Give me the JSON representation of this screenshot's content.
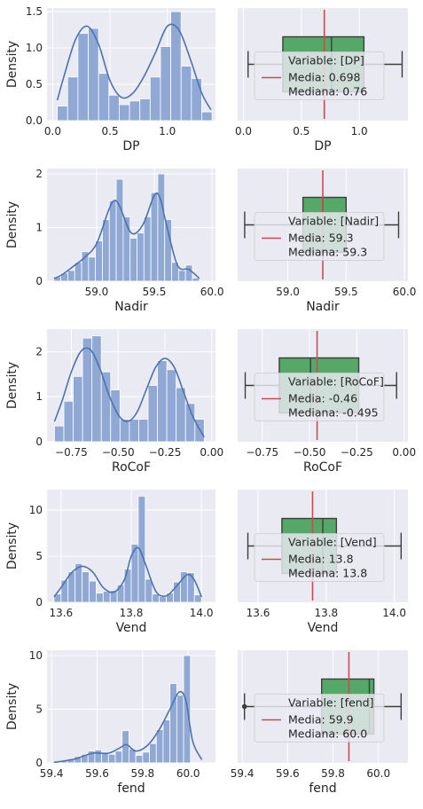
{
  "colors": {
    "panel_bg": "#eaeaf2",
    "grid": "#ffffff",
    "hist_fill": "#8fa8d4",
    "hist_edge": "#ffffff",
    "kde": "#4c72b0",
    "box_fill": "#55a868",
    "box_edge": "#3d3d3d",
    "mean_line": "#c44e52",
    "text": "#262626"
  },
  "chart_data": [
    {
      "type": "bar",
      "variable": "DP",
      "xlabel": "DP",
      "ylabel": "Density",
      "xlim": [
        -0.05,
        1.42
      ],
      "ylim": [
        0,
        1.55
      ],
      "xticks": [
        0.0,
        0.5,
        1.0
      ],
      "xtick_labels": [
        "0.0",
        "0.5",
        "1.0"
      ],
      "yticks": [
        0.0,
        0.5,
        1.0,
        1.5
      ],
      "ytick_labels": [
        "0.0",
        "0.5",
        "1.0",
        "1.5"
      ],
      "bin_edges": [
        0.04,
        0.13,
        0.22,
        0.31,
        0.4,
        0.49,
        0.58,
        0.67,
        0.76,
        0.85,
        0.94,
        1.03,
        1.12,
        1.21,
        1.3,
        1.39
      ],
      "bin_values": [
        0.2,
        0.6,
        1.2,
        1.27,
        0.65,
        0.35,
        0.22,
        0.27,
        0.3,
        0.6,
        1.02,
        1.5,
        0.75,
        0.58,
        0.12
      ],
      "kde_x": [
        0.04,
        0.1,
        0.2,
        0.3,
        0.4,
        0.5,
        0.6,
        0.7,
        0.8,
        0.9,
        1.0,
        1.1,
        1.2,
        1.3,
        1.38
      ],
      "kde_y": [
        0.28,
        0.62,
        1.12,
        1.3,
        1.05,
        0.55,
        0.32,
        0.38,
        0.62,
        0.95,
        1.3,
        1.25,
        0.85,
        0.38,
        0.15
      ],
      "box": {
        "whisker_low": 0.04,
        "q1": 0.34,
        "median": 0.76,
        "q3": 1.04,
        "whisker_high": 1.37,
        "mean": 0.698,
        "xlim": [
          -0.05,
          1.42
        ],
        "xticks": [
          0.0,
          0.5,
          1.0
        ],
        "xtick_labels": [
          "0.0",
          "0.5",
          "1.0"
        ]
      },
      "legend": {
        "title": "Variable: [DP]",
        "entries": [
          "Media: 0.698",
          "Mediana: 0.76"
        ]
      }
    },
    {
      "type": "bar",
      "variable": "Nadir",
      "xlabel": "Nadir",
      "ylabel": "Density",
      "xlim": [
        58.57,
        60.03
      ],
      "ylim": [
        0,
        2.1
      ],
      "xticks": [
        59.0,
        59.5,
        60.0
      ],
      "xtick_labels": [
        "59.0",
        "59.5",
        "60.0"
      ],
      "yticks": [
        0,
        1,
        2
      ],
      "ytick_labels": [
        "0",
        "1",
        "2"
      ],
      "bin_edges": [
        58.63,
        58.69,
        58.75,
        58.81,
        58.87,
        58.93,
        58.99,
        59.05,
        59.11,
        59.17,
        59.23,
        59.29,
        59.35,
        59.41,
        59.47,
        59.53,
        59.59,
        59.65,
        59.71,
        59.77,
        59.83,
        59.89
      ],
      "bin_values": [
        0.08,
        0.15,
        0.2,
        0.35,
        0.55,
        0.45,
        0.75,
        1.15,
        1.5,
        1.9,
        1.2,
        0.8,
        0.9,
        1.2,
        1.65,
        2.0,
        1.15,
        0.35,
        0.2,
        0.3,
        0.06
      ],
      "kde_x": [
        58.63,
        58.7,
        58.8,
        58.9,
        59.0,
        59.1,
        59.15,
        59.2,
        59.3,
        59.4,
        59.5,
        59.55,
        59.6,
        59.7,
        59.8,
        59.89
      ],
      "kde_y": [
        0.05,
        0.12,
        0.28,
        0.45,
        0.7,
        1.3,
        1.5,
        1.4,
        0.9,
        1.05,
        1.6,
        1.55,
        1.1,
        0.3,
        0.22,
        0.05
      ],
      "box": {
        "whisker_low": 58.63,
        "q1": 59.13,
        "median": 59.3,
        "q3": 59.5,
        "whisker_high": 59.95,
        "mean": 59.3,
        "xlim": [
          58.57,
          60.03
        ],
        "xticks": [
          59.0,
          59.5,
          60.0
        ],
        "xtick_labels": [
          "59.0",
          "59.5",
          "60.0"
        ]
      },
      "legend": {
        "title": "Variable: [Nadir]",
        "entries": [
          "Media: 59.3",
          "Mediana: 59.3"
        ]
      }
    },
    {
      "type": "bar",
      "variable": "RoCoF",
      "xlabel": "RoCoF",
      "ylabel": "Density",
      "xlim": [
        -0.88,
        0.02
      ],
      "ylim": [
        0,
        2.5
      ],
      "xticks": [
        -0.75,
        -0.5,
        -0.25,
        0.0
      ],
      "xtick_labels": [
        "−0.75",
        "−0.50",
        "−0.25",
        "0.00"
      ],
      "yticks": [
        0,
        1,
        2
      ],
      "ytick_labels": [
        "0",
        "1",
        "2"
      ],
      "bin_edges": [
        -0.84,
        -0.79,
        -0.74,
        -0.69,
        -0.64,
        -0.59,
        -0.54,
        -0.49,
        -0.44,
        -0.39,
        -0.34,
        -0.29,
        -0.24,
        -0.19,
        -0.14,
        -0.09,
        -0.04
      ],
      "bin_values": [
        0.35,
        0.9,
        1.45,
        2.3,
        2.35,
        1.55,
        1.15,
        0.5,
        0.5,
        0.5,
        1.25,
        1.8,
        1.6,
        1.2,
        0.85,
        0.5
      ],
      "kde_x": [
        -0.84,
        -0.8,
        -0.75,
        -0.7,
        -0.65,
        -0.6,
        -0.55,
        -0.5,
        -0.45,
        -0.4,
        -0.35,
        -0.3,
        -0.25,
        -0.2,
        -0.15,
        -0.1,
        -0.04
      ],
      "kde_y": [
        0.45,
        0.9,
        1.55,
        2.0,
        2.05,
        1.65,
        1.05,
        0.6,
        0.45,
        0.65,
        1.15,
        1.65,
        1.85,
        1.65,
        1.1,
        0.55,
        0.1
      ],
      "box": {
        "whisker_low": -0.84,
        "q1": -0.66,
        "median": -0.495,
        "q3": -0.24,
        "whisker_high": -0.04,
        "mean": -0.46,
        "xlim": [
          -0.88,
          0.02
        ],
        "xticks": [
          -0.75,
          -0.5,
          -0.25,
          0.0
        ],
        "xtick_labels": [
          "−0.75",
          "−0.50",
          "−0.25",
          "0.00"
        ]
      },
      "legend": {
        "title": "Variable: [RoCoF]",
        "entries": [
          "Media: -0.46",
          "Mediana: -0.495"
        ]
      }
    },
    {
      "type": "bar",
      "variable": "Vend",
      "xlabel": "Vend",
      "ylabel": "Density",
      "xlim": [
        13.56,
        14.04
      ],
      "ylim": [
        0,
        12.2
      ],
      "xticks": [
        13.6,
        13.8,
        14.0
      ],
      "xtick_labels": [
        "13.6",
        "13.8",
        "14.0"
      ],
      "yticks": [
        0,
        5,
        10
      ],
      "ytick_labels": [
        "0",
        "5",
        "10"
      ],
      "bin_edges": [
        13.58,
        13.6,
        13.62,
        13.64,
        13.66,
        13.68,
        13.7,
        13.72,
        13.74,
        13.76,
        13.78,
        13.8,
        13.82,
        13.84,
        13.86,
        13.88,
        13.9,
        13.92,
        13.94,
        13.96,
        13.98,
        14.0
      ],
      "bin_values": [
        0.9,
        2.4,
        3.3,
        4.2,
        3.3,
        2.3,
        1.0,
        1.2,
        1.3,
        1.9,
        3.6,
        6.3,
        11.5,
        2.5,
        0.9,
        0.6,
        1.0,
        2.2,
        3.3,
        3.2,
        0.8
      ],
      "kde_x": [
        13.58,
        13.6,
        13.63,
        13.66,
        13.69,
        13.72,
        13.75,
        13.78,
        13.8,
        13.82,
        13.84,
        13.87,
        13.9,
        13.93,
        13.96,
        13.98,
        14.0
      ],
      "kde_y": [
        0.6,
        1.6,
        3.2,
        3.9,
        3.3,
        1.6,
        1.1,
        2.4,
        5.0,
        5.9,
        4.2,
        1.2,
        0.7,
        1.8,
        3.0,
        2.4,
        0.6
      ],
      "box": {
        "whisker_low": 13.57,
        "q1": 13.67,
        "median": 13.79,
        "q3": 13.83,
        "whisker_high": 14.02,
        "mean": 13.76,
        "xlim": [
          13.54,
          14.04
        ],
        "xticks": [
          13.6,
          13.8,
          14.0
        ],
        "xtick_labels": [
          "13.6",
          "13.8",
          "14.0"
        ]
      },
      "legend": {
        "title": "Variable: [Vend]",
        "entries": [
          "Media: 13.8",
          "Mediana: 13.8"
        ]
      }
    },
    {
      "type": "bar",
      "variable": "fend",
      "xlabel": "fend",
      "ylabel": "Density",
      "xlim": [
        59.38,
        60.12
      ],
      "ylim": [
        0,
        10.5
      ],
      "xticks": [
        59.4,
        59.6,
        59.8,
        60.0
      ],
      "xtick_labels": [
        "59.4",
        "59.6",
        "59.8",
        "60.0"
      ],
      "yticks": [
        0,
        5,
        10
      ],
      "ytick_labels": [
        "0",
        "5",
        "10"
      ],
      "bin_edges": [
        59.41,
        59.44,
        59.47,
        59.5,
        59.53,
        59.56,
        59.59,
        59.62,
        59.65,
        59.68,
        59.71,
        59.74,
        59.77,
        59.8,
        59.83,
        59.86,
        59.89,
        59.92,
        59.95,
        59.98,
        60.01
      ],
      "bin_values": [
        0.1,
        0.2,
        0.4,
        0.6,
        0.8,
        1.1,
        1.2,
        1.0,
        0.8,
        1.1,
        3.0,
        1.3,
        0.7,
        1.0,
        1.8,
        3.1,
        4.0,
        7.4,
        6.3,
        10.0
      ],
      "kde_x": [
        59.41,
        59.5,
        59.58,
        59.65,
        59.7,
        59.73,
        59.77,
        59.82,
        59.87,
        59.92,
        59.96,
        59.99,
        60.02,
        60.06
      ],
      "kde_y": [
        0.05,
        0.35,
        0.9,
        0.9,
        1.4,
        1.7,
        1.1,
        1.6,
        3.0,
        5.0,
        6.6,
        5.8,
        2.0,
        0.3
      ],
      "box": {
        "whisker_low": 59.41,
        "q1": 59.75,
        "median": 59.96,
        "q3": 59.98,
        "whisker_high": 60.1,
        "mean": 59.87,
        "outliers": [
          59.41
        ],
        "xlim": [
          59.38,
          60.13
        ],
        "xticks": [
          59.4,
          59.6,
          59.8,
          60.0
        ],
        "xtick_labels": [
          "59.4",
          "59.6",
          "59.8",
          "60.0"
        ]
      },
      "legend": {
        "title": "Variable: [fend]",
        "entries": [
          "Media: 59.9",
          "Mediana: 60.0"
        ]
      }
    }
  ]
}
